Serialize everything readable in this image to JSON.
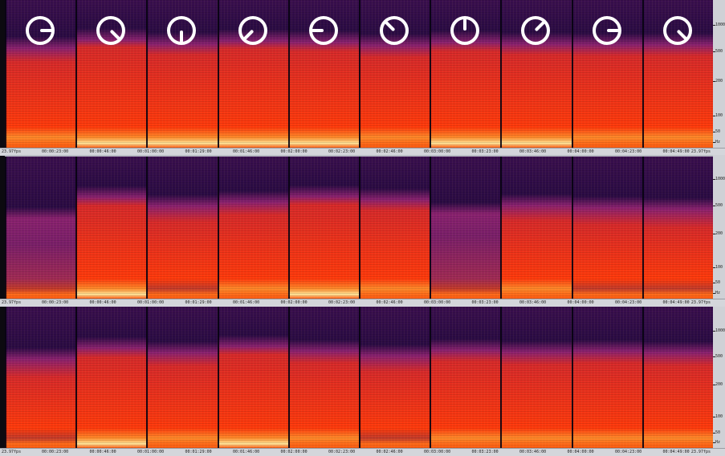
{
  "fps_label": "23.97fps",
  "time_labels": [
    "00:00:23:00",
    "00:00:46:00",
    "00:01:00:00",
    "00:01:29:00",
    "00:01:46:00",
    "00:02:00:00",
    "00:02:23:00",
    "00:02:46:00",
    "00:03:00:00",
    "00:03:23:00",
    "00:03:46:00",
    "00:04:00:00",
    "00:04:23:00",
    "00:04:49:00"
  ],
  "freq_labels": [
    "1000",
    "500",
    "200",
    "100",
    "50",
    "Hz"
  ],
  "colors": {
    "low": "#2a0c3e",
    "mid": "#8a2170",
    "high": "#ff3a0c",
    "peak": "#ffe59a",
    "axis": "#d4d6db"
  },
  "dials": [
    {
      "icon": "dial-knob-icon",
      "rotation_deg": 90
    },
    {
      "icon": "dial-knob-icon",
      "rotation_deg": 135
    },
    {
      "icon": "dial-knob-icon",
      "rotation_deg": 180
    },
    {
      "icon": "dial-knob-icon",
      "rotation_deg": 225
    },
    {
      "icon": "dial-knob-icon",
      "rotation_deg": 270
    },
    {
      "icon": "dial-knob-icon",
      "rotation_deg": 315
    },
    {
      "icon": "dial-knob-icon",
      "rotation_deg": 0
    },
    {
      "icon": "dial-knob-icon",
      "rotation_deg": 45
    },
    {
      "icon": "dial-knob-icon",
      "rotation_deg": 90
    },
    {
      "icon": "dial-knob-icon",
      "rotation_deg": 135
    }
  ],
  "panels": [
    {
      "name": "spectrogram-top",
      "energy": [
        0.7,
        0.95,
        0.82,
        0.92,
        0.88,
        0.78,
        0.88,
        0.82,
        0.8,
        0.8
      ]
    },
    {
      "name": "spectrogram-middle",
      "energy": [
        0.2,
        0.88,
        0.6,
        0.72,
        0.9,
        0.8,
        0.35,
        0.62,
        0.55,
        0.5
      ]
    },
    {
      "name": "spectrogram-bottom",
      "energy": [
        0.5,
        0.85,
        0.7,
        0.9,
        0.75,
        0.6,
        0.78,
        0.72,
        0.75,
        0.7
      ]
    }
  ]
}
